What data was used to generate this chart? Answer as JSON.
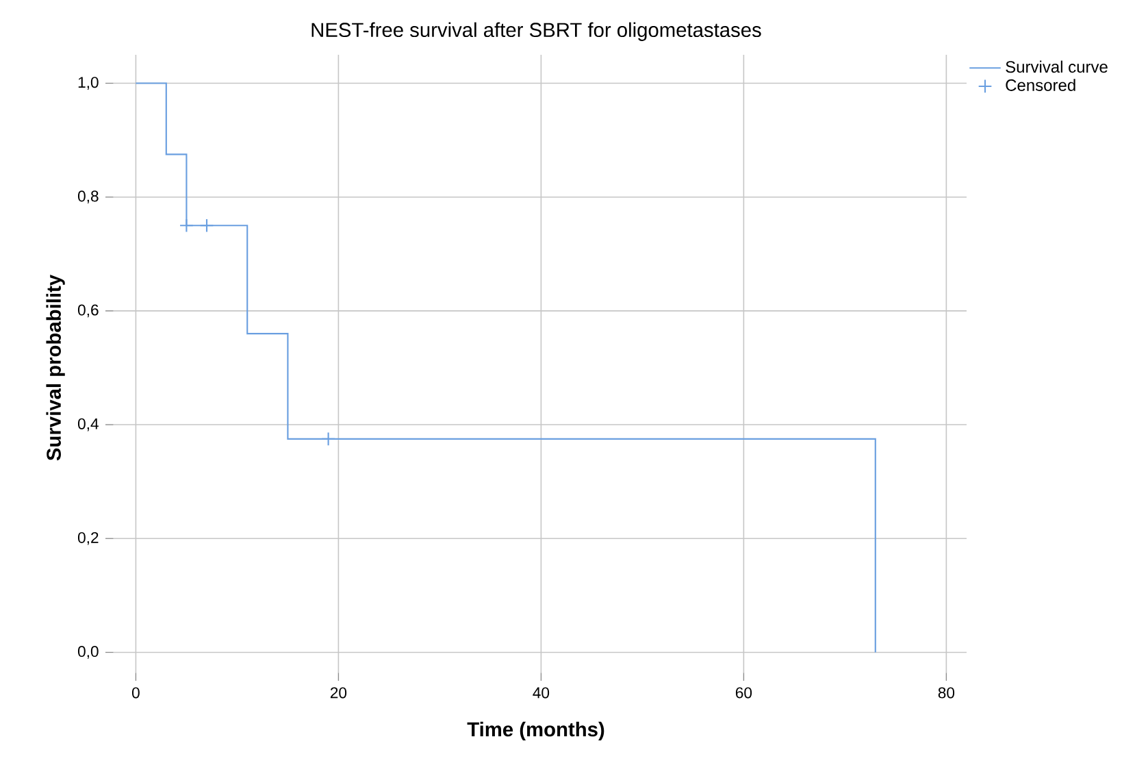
{
  "chart_data": {
    "type": "step",
    "title": "NEST-free survival after SBRT for oligometastases",
    "xlabel": "Time (months)",
    "ylabel": "Survival probability",
    "series": [
      {
        "name": "Survival curve",
        "color": "#6a9fe0",
        "x": [
          0,
          3,
          5,
          11,
          15,
          73
        ],
        "values": [
          1,
          0.875,
          0.75,
          0.56,
          0.375,
          0
        ]
      },
      {
        "name": "Censored",
        "type": "scatter",
        "marker": "cross",
        "color": "#6a9fe0",
        "x": [
          5,
          7,
          19
        ],
        "values": [
          0.75,
          0.75,
          0.375
        ]
      }
    ],
    "xlim": [
      -3,
      82
    ],
    "ylim": [
      -0.05,
      1.05
    ],
    "xticks": [
      0,
      20,
      40,
      60,
      80
    ],
    "yticks": [
      {
        "value": 0,
        "label": "0,0"
      },
      {
        "value": 0.2,
        "label": "0,2"
      },
      {
        "value": 0.4,
        "label": "0,4"
      },
      {
        "value": 0.6,
        "label": "0,6"
      },
      {
        "value": 0.8,
        "label": "0,8"
      },
      {
        "value": 1,
        "label": "1,0"
      }
    ],
    "grid": true,
    "legend": "top right"
  }
}
